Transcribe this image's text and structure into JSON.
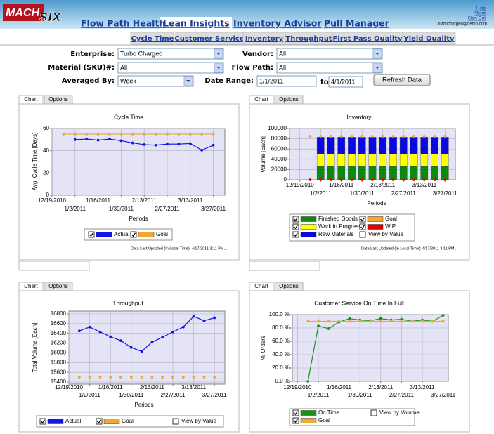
{
  "header": {
    "logo_main": "MACH",
    "logo_accent": "six",
    "tabs": [
      "Flow Path Health",
      "Lean Insights",
      "Inventory Advisor",
      "Pull Manager"
    ],
    "selected_tab": 1,
    "links": [
      "Help",
      "About",
      "Sign Out"
    ],
    "user": "turbocharged@demo.com"
  },
  "subtabs": [
    "Cycle Time",
    "Customer Service",
    "Inventory",
    "Throughput",
    "First Pass Quality",
    "Yield Quality"
  ],
  "filters": {
    "enterprise": {
      "label": "Enterprise:",
      "value": "Turbo Charged"
    },
    "vendor": {
      "label": "Vendor:",
      "value": "All"
    },
    "material": {
      "label": "Material (SKU)#:",
      "value": "All"
    },
    "flow_path": {
      "label": "Flow Path:",
      "value": "All"
    },
    "averaged_by": {
      "label": "Averaged By:",
      "value": "Week"
    },
    "date_range": {
      "label": "Date Range:",
      "from": "1/1/2011",
      "to_label": "to",
      "to": "4/1/2011"
    },
    "button": "Refresh Data"
  },
  "panel_tabs": [
    "Chart",
    "Options"
  ],
  "chart_data": [
    {
      "type": "line",
      "title": "Cycle Time",
      "xlabel": "Periods",
      "ylabel": "Avg. Cycle Time [Days]",
      "x": [
        1,
        2,
        3,
        4,
        5,
        6,
        7,
        8,
        9,
        10,
        11,
        12,
        13,
        14
      ],
      "xlim": [
        0,
        15
      ],
      "xticks": [
        {
          "value": 0,
          "label": "12/19/2010"
        },
        {
          "value": 2,
          "label": "1/2/2011"
        },
        {
          "value": 4,
          "label": "1/16/2011"
        },
        {
          "value": 6,
          "label": "1/30/2011"
        },
        {
          "value": 8,
          "label": "2/13/2011"
        },
        {
          "value": 10,
          "label": "2/27/2011"
        },
        {
          "value": 12,
          "label": "3/13/2011"
        },
        {
          "value": 14,
          "label": "3/27/2011"
        }
      ],
      "ylim": [
        0,
        60
      ],
      "yticks": [
        0,
        20,
        40,
        60
      ],
      "grid": true,
      "series": [
        {
          "name": "Actual",
          "color": "#1414e6",
          "checked": true,
          "line": true,
          "values": [
            null,
            50,
            50.5,
            49.5,
            50.5,
            49,
            47,
            45.5,
            45,
            46,
            46,
            46.5,
            40.5,
            45
          ]
        },
        {
          "name": "Goal",
          "color": "#f0a830",
          "checked": true,
          "line": true,
          "values": [
            55,
            55,
            55,
            55,
            55,
            55,
            55,
            55,
            55,
            55,
            55,
            55,
            55,
            55
          ]
        }
      ],
      "footnote": "Data Last Updated (In Local Time): 4/17/2011 3:11 PM..."
    },
    {
      "type": "bar",
      "stacked": true,
      "title": "Inventory",
      "xlabel": "Periods",
      "ylabel": "Volume [Each]",
      "x": [
        1,
        2,
        3,
        4,
        5,
        6,
        7,
        8,
        9,
        10,
        11,
        12,
        13,
        14
      ],
      "xlim": [
        -1,
        15
      ],
      "xticks": [
        {
          "value": 0,
          "label": "12/19/2010"
        },
        {
          "value": 2,
          "label": "1/2/2011"
        },
        {
          "value": 4,
          "label": "1/16/2011"
        },
        {
          "value": 6,
          "label": "1/30/2011"
        },
        {
          "value": 8,
          "label": "2/13/2011"
        },
        {
          "value": 10,
          "label": "2/27/2011"
        },
        {
          "value": 12,
          "label": "3/13/2011"
        },
        {
          "value": 14,
          "label": "3/27/2011"
        }
      ],
      "ylim": [
        0,
        100000
      ],
      "yticks": [
        0,
        20000,
        40000,
        60000,
        80000,
        100000
      ],
      "grid": true,
      "series": [
        {
          "name": "Finished Goods",
          "kind": "bar",
          "color": "#0c8a0c",
          "checked": true,
          "values": [
            null,
            26000,
            26000,
            26000,
            26000,
            26000,
            26000,
            26000,
            26000,
            26000,
            26000,
            26000,
            26000,
            26000
          ]
        },
        {
          "name": "Work in Progress",
          "kind": "bar",
          "color": "#ffff00",
          "checked": true,
          "values": [
            null,
            24000,
            24000,
            24000,
            24000,
            24000,
            24000,
            24000,
            24000,
            24000,
            24000,
            24000,
            24000,
            24000
          ]
        },
        {
          "name": "Raw Materials",
          "kind": "bar",
          "color": "#0a0ae0",
          "checked": true,
          "values": [
            null,
            33000,
            33000,
            33000,
            33000,
            33000,
            33000,
            33000,
            33000,
            33000,
            33000,
            33000,
            33000,
            33000
          ]
        },
        {
          "name": "Goal",
          "kind": "line",
          "line": false,
          "color": "#f0a830",
          "checked": true,
          "values": [
            85000,
            85000,
            85000,
            85000,
            85000,
            85000,
            85000,
            85000,
            85000,
            85000,
            85000,
            85000,
            85000,
            85000
          ]
        },
        {
          "name": "WIP",
          "kind": "line",
          "line": false,
          "color": "#e00000",
          "checked": true,
          "values": [
            0,
            0,
            0,
            0,
            0,
            0,
            0,
            0,
            0,
            0,
            0,
            0,
            0,
            0
          ]
        }
      ],
      "options": [
        {
          "label": "View by Value",
          "checked": false
        }
      ],
      "footnote": "Data Last Updated (In Local Time): 4/17/2011 3:11 PM..."
    },
    {
      "type": "line",
      "title": "Throughput",
      "xlabel": "Periods",
      "ylabel": "Total Volume [Each]",
      "x": [
        1,
        2,
        3,
        4,
        5,
        6,
        7,
        8,
        9,
        10,
        11,
        12,
        13,
        14
      ],
      "xlim": [
        0,
        15
      ],
      "xticks": [
        {
          "value": 0,
          "label": "12/19/2010"
        },
        {
          "value": 2,
          "label": "1/2/2011"
        },
        {
          "value": 4,
          "label": "1/16/2011"
        },
        {
          "value": 6,
          "label": "1/30/2011"
        },
        {
          "value": 8,
          "label": "2/13/2011"
        },
        {
          "value": 10,
          "label": "2/27/2011"
        },
        {
          "value": 12,
          "label": "3/13/2011"
        },
        {
          "value": 14,
          "label": "3/27/2011"
        }
      ],
      "ylim": [
        15400,
        16800
      ],
      "yticks": [
        15400,
        15600,
        15800,
        16000,
        16200,
        16400,
        16600,
        16800
      ],
      "grid": true,
      "series": [
        {
          "name": "Actual",
          "color": "#1414e6",
          "checked": true,
          "line": true,
          "values": [
            16450,
            16530,
            16430,
            16330,
            16250,
            16110,
            16030,
            16220,
            16320,
            16430,
            16530,
            16750,
            16660,
            16720
          ]
        },
        {
          "name": "Goal",
          "color": "#f0a830",
          "checked": true,
          "line": false,
          "values": [
            15500,
            15500,
            15500,
            15500,
            15500,
            15500,
            15500,
            15500,
            15500,
            15500,
            15500,
            15500,
            15500,
            15500
          ]
        }
      ],
      "options": [
        {
          "label": "View by Value",
          "checked": false
        }
      ]
    },
    {
      "type": "line",
      "title": "Customer Service On Time In Full",
      "ylabel": "% Orders",
      "x": [
        1,
        2,
        3,
        4,
        5,
        6,
        7,
        8,
        9,
        10,
        11,
        12,
        13,
        14
      ],
      "xlim": [
        -0.5,
        14.5
      ],
      "xticks": [
        {
          "value": 0,
          "label": "12/19/2010"
        },
        {
          "value": 2,
          "label": "1/2/2011"
        },
        {
          "value": 4,
          "label": "1/16/2011"
        },
        {
          "value": 6,
          "label": "1/30/2011"
        },
        {
          "value": 8,
          "label": "2/13/2011"
        },
        {
          "value": 10,
          "label": "2/27/2011"
        },
        {
          "value": 12,
          "label": "3/13/2011"
        },
        {
          "value": 14,
          "label": "3/27/2011"
        }
      ],
      "ylim": [
        0,
        100
      ],
      "yticks": [
        {
          "value": 0,
          "label": "0.0 %"
        },
        {
          "value": 20,
          "label": "20.0 %"
        },
        {
          "value": 40,
          "label": "40.0 %"
        },
        {
          "value": 60,
          "label": "60.0 %"
        },
        {
          "value": 80,
          "label": "80.0 %"
        },
        {
          "value": 100,
          "label": "100.0 %"
        }
      ],
      "grid": true,
      "series": [
        {
          "name": "On Time",
          "color": "#149614",
          "checked": true,
          "line": true,
          "values": [
            0,
            83,
            79,
            89,
            94,
            92,
            91,
            94,
            92,
            93,
            90,
            92,
            90,
            99
          ]
        },
        {
          "name": "Goal",
          "color": "#f0a830",
          "checked": true,
          "line": true,
          "values": [
            90,
            90,
            90,
            90,
            90,
            90,
            90,
            90,
            90,
            90,
            90,
            90,
            90,
            90
          ]
        }
      ],
      "options": [
        {
          "label": "View by Volume",
          "checked": false
        }
      ]
    }
  ]
}
